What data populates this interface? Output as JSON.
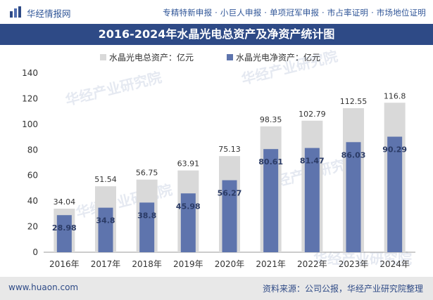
{
  "header": {
    "brand": "华经情报网",
    "services": "专精特新申报 · 小巨人申报 · 单项冠军申报 · 市占率证明 · 市场地位证明"
  },
  "footer": {
    "website": "www.huaon.com",
    "source": "资料来源：公司公报，华经产业研究院整理"
  },
  "watermark": "华经产业研究院",
  "colors": {
    "title_bg": "#2e4a86",
    "total_bar": "#d9d9d9",
    "net_bar": "#5e74ad"
  },
  "chart_data": {
    "type": "bar",
    "title": "2016-2024年水晶光电总资产及净资产统计图",
    "categories": [
      "2016年",
      "2017年",
      "2018年",
      "2019年",
      "2020年",
      "2021年",
      "2022年",
      "2023年",
      "2024年"
    ],
    "series": [
      {
        "name": "水晶光电总资产：亿元",
        "values": [
          34.04,
          51.54,
          56.75,
          63.91,
          75.13,
          98.35,
          102.79,
          112.55,
          116.8
        ]
      },
      {
        "name": "水晶光电净资产：亿元",
        "values": [
          28.98,
          34.8,
          38.8,
          45.98,
          56.27,
          80.61,
          81.47,
          86.03,
          90.29
        ]
      }
    ],
    "value_labels": {
      "total": [
        "34.04",
        "51.54",
        "56.75",
        "63.91",
        "75.13",
        "98.35",
        "102.79",
        "112.55",
        "116.8"
      ],
      "net": [
        "28.98",
        "34.8",
        "38.8",
        "45.98",
        "56.27",
        "80.61",
        "81.47",
        "86.03",
        "90.29"
      ]
    },
    "yticks": [
      "0",
      "20",
      "40",
      "60",
      "80",
      "100",
      "120",
      "140"
    ],
    "ylim": [
      0,
      140
    ],
    "xlabel": "",
    "ylabel": "",
    "legend_position": "top-center"
  }
}
